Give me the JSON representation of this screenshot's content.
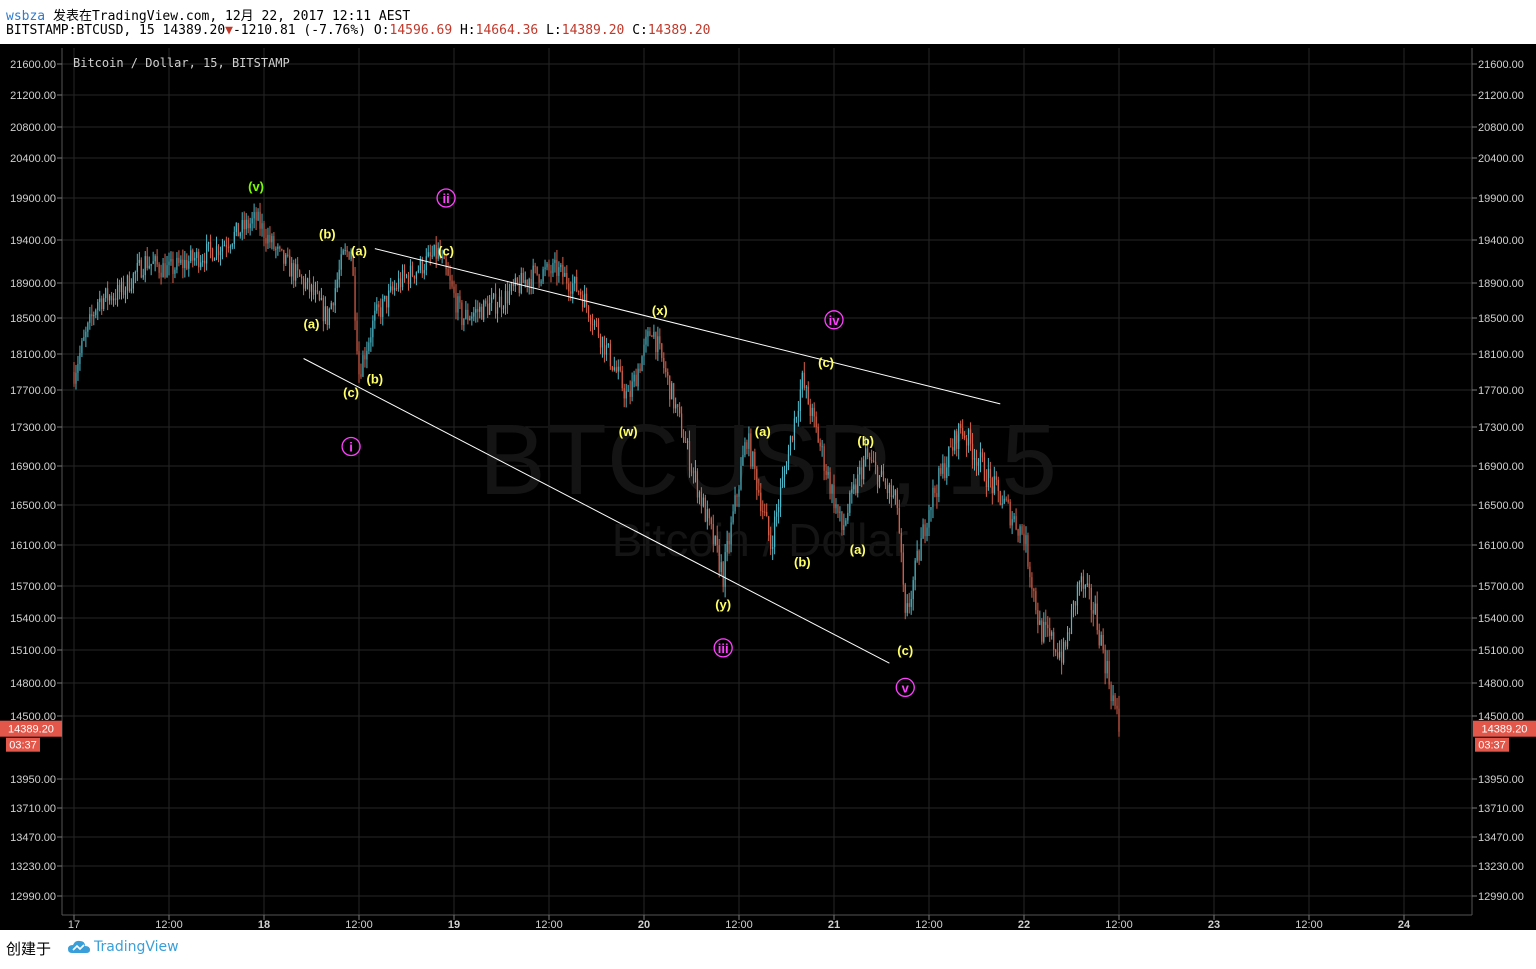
{
  "header": {
    "user": "wsbza",
    "published": "发表在TradingView.com, 12月 22, 2017 12:11 AEST",
    "symbol_line": "BITSTAMP:BTCUSD, 15 14389.20",
    "change_arrow": "▼",
    "change": "-1210.81 (-7.76%)",
    "o_label": "O:",
    "o_value": "14596.69",
    "h_label": "H:",
    "h_value": "14664.36",
    "l_label": "L:",
    "l_value": "14389.20",
    "c_label": "C:",
    "c_value": "14389.20"
  },
  "legend": "Bitcoin / Dollar, 15, BITSTAMP",
  "watermark": {
    "line1": "BTCUSD, 15",
    "line2": "Bitcoin / Dollar"
  },
  "price_badge": {
    "price": "14389.20",
    "countdown": "03:37"
  },
  "footer": {
    "made_with": "创建于",
    "brand": "TradingView"
  },
  "colors": {
    "up": "#4fb8c8",
    "down": "#d9604a",
    "background": "#000000",
    "grid": "#262626",
    "wave_yellow": "#ffff66",
    "wave_green": "#7cfc00",
    "wave_magenta": "#ff40ff",
    "trendline": "#ffffff"
  },
  "chart_data": {
    "type": "candlestick",
    "title": "Bitcoin / Dollar, 15, BITSTAMP",
    "y_ticks": [
      21600,
      21200,
      20800,
      20400,
      19900,
      19400,
      18900,
      18500,
      18100,
      17700,
      17300,
      16900,
      16500,
      16100,
      15700,
      15400,
      15100,
      14800,
      14500,
      13950,
      13710,
      13470,
      13230,
      12990
    ],
    "x_ticks": [
      "17",
      "12:00",
      "18",
      "12:00",
      "19",
      "12:00",
      "20",
      "12:00",
      "21",
      "12:00",
      "22",
      "12:00",
      "23",
      "12:00",
      "24"
    ],
    "x_ticks_bold": [
      "18",
      "19",
      "20",
      "21",
      "22",
      "23",
      "24"
    ],
    "ylim": [
      12900,
      21800
    ],
    "price_path": [
      {
        "t": "2017-12-17 00:00",
        "p": 17900
      },
      {
        "t": "2017-12-17 03:00",
        "p": 18700
      },
      {
        "t": "2017-12-17 06:00",
        "p": 18800
      },
      {
        "t": "2017-12-17 09:00",
        "p": 19150
      },
      {
        "t": "2017-12-17 12:00",
        "p": 19050
      },
      {
        "t": "2017-12-17 18:00",
        "p": 19300
      },
      {
        "t": "2017-12-17 23:00",
        "p": 19650
      },
      {
        "t": "2017-12-18 02:00",
        "p": 19200
      },
      {
        "t": "2017-12-18 06:00",
        "p": 18800
      },
      {
        "t": "2017-12-18 08:00",
        "p": 18500
      },
      {
        "t": "2017-12-18 10:00",
        "p": 19200
      },
      {
        "t": "2017-12-18 11:00",
        "p": 19300
      },
      {
        "t": "2017-12-18 12:00",
        "p": 17900
      },
      {
        "t": "2017-12-18 14:00",
        "p": 18500
      },
      {
        "t": "2017-12-18 17:00",
        "p": 18900
      },
      {
        "t": "2017-12-18 22:00",
        "p": 19250
      },
      {
        "t": "2017-12-19 01:00",
        "p": 18500
      },
      {
        "t": "2017-12-19 06:00",
        "p": 18700
      },
      {
        "t": "2017-12-19 10:00",
        "p": 19000
      },
      {
        "t": "2017-12-19 13:00",
        "p": 19050
      },
      {
        "t": "2017-12-19 16:00",
        "p": 18800
      },
      {
        "t": "2017-12-19 19:00",
        "p": 18200
      },
      {
        "t": "2017-12-19 22:00",
        "p": 17600
      },
      {
        "t": "2017-12-20 01:00",
        "p": 18400
      },
      {
        "t": "2017-12-20 06:00",
        "p": 16900
      },
      {
        "t": "2017-12-20 10:00",
        "p": 15800
      },
      {
        "t": "2017-12-20 13:00",
        "p": 17200
      },
      {
        "t": "2017-12-20 16:00",
        "p": 16100
      },
      {
        "t": "2017-12-20 20:00",
        "p": 17800
      },
      {
        "t": "2017-12-21 01:00",
        "p": 16250
      },
      {
        "t": "2017-12-21 04:00",
        "p": 17000
      },
      {
        "t": "2017-12-21 08:00",
        "p": 16500
      },
      {
        "t": "2017-12-21 09:00",
        "p": 15350
      },
      {
        "t": "2017-12-21 12:00",
        "p": 16500
      },
      {
        "t": "2017-12-21 16:00",
        "p": 17300
      },
      {
        "t": "2017-12-21 20:00",
        "p": 16700
      },
      {
        "t": "2017-12-22 00:00",
        "p": 16200
      },
      {
        "t": "2017-12-22 02:00",
        "p": 15300
      },
      {
        "t": "2017-12-22 05:00",
        "p": 15050
      },
      {
        "t": "2017-12-22 07:00",
        "p": 15750
      },
      {
        "t": "2017-12-22 09:00",
        "p": 15450
      },
      {
        "t": "2017-12-22 12:00",
        "p": 14389.2
      }
    ],
    "trendlines": [
      {
        "start": {
          "t": "2017-12-18 14:00",
          "p": 19300
        },
        "end": {
          "t": "2017-12-21 21:00",
          "p": 17550
        }
      },
      {
        "start": {
          "t": "2017-12-18 05:00",
          "p": 18050
        },
        "end": {
          "t": "2017-12-21 07:00",
          "p": 14980
        }
      }
    ],
    "annotations": [
      {
        "text": "(v)",
        "t": "2017-12-17 23:00",
        "p": 20050,
        "color": "green"
      },
      {
        "text": "(b)",
        "t": "2017-12-18 08:00",
        "p": 19480,
        "color": "yellow"
      },
      {
        "text": "(a)",
        "t": "2017-12-18 12:00",
        "p": 19280,
        "color": "yellow"
      },
      {
        "text": "(a)",
        "t": "2017-12-18 06:00",
        "p": 18440,
        "color": "yellow"
      },
      {
        "text": "(b)",
        "t": "2017-12-18 14:00",
        "p": 17830,
        "color": "yellow"
      },
      {
        "text": "(c)",
        "t": "2017-12-18 11:00",
        "p": 17680,
        "color": "yellow"
      },
      {
        "text": "i",
        "t": "2017-12-18 11:00",
        "p": 17100,
        "color": "magenta",
        "circled": true
      },
      {
        "text": "ii",
        "t": "2017-12-18 23:00",
        "p": 19900,
        "color": "magenta",
        "circled": true
      },
      {
        "text": "(c)",
        "t": "2017-12-18 23:00",
        "p": 19280,
        "color": "yellow"
      },
      {
        "text": "(x)",
        "t": "2017-12-20 02:00",
        "p": 18590,
        "color": "yellow"
      },
      {
        "text": "iv",
        "t": "2017-12-21 00:00",
        "p": 18480,
        "color": "magenta",
        "circled": true
      },
      {
        "text": "(w)",
        "t": "2017-12-19 22:00",
        "p": 17260,
        "color": "yellow"
      },
      {
        "text": "(c)",
        "t": "2017-12-20 23:00",
        "p": 18010,
        "color": "yellow"
      },
      {
        "text": "(a)",
        "t": "2017-12-20 15:00",
        "p": 17260,
        "color": "yellow"
      },
      {
        "text": "(b)",
        "t": "2017-12-21 04:00",
        "p": 17160,
        "color": "yellow"
      },
      {
        "text": "(b)",
        "t": "2017-12-20 20:00",
        "p": 15940,
        "color": "yellow"
      },
      {
        "text": "(a)",
        "t": "2017-12-21 03:00",
        "p": 16060,
        "color": "yellow"
      },
      {
        "text": "(y)",
        "t": "2017-12-20 10:00",
        "p": 15530,
        "color": "yellow"
      },
      {
        "text": "iii",
        "t": "2017-12-20 10:00",
        "p": 15120,
        "color": "magenta",
        "circled": true
      },
      {
        "text": "(c)",
        "t": "2017-12-21 09:00",
        "p": 15100,
        "color": "yellow"
      },
      {
        "text": "v",
        "t": "2017-12-21 09:00",
        "p": 14760,
        "color": "magenta",
        "circled": true
      }
    ]
  }
}
